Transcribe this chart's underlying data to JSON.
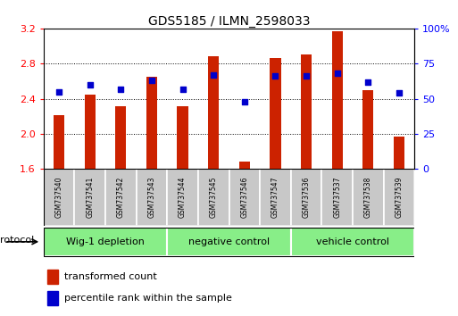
{
  "title": "GDS5185 / ILMN_2598033",
  "samples": [
    "GSM737540",
    "GSM737541",
    "GSM737542",
    "GSM737543",
    "GSM737544",
    "GSM737545",
    "GSM737546",
    "GSM737547",
    "GSM737536",
    "GSM737537",
    "GSM737538",
    "GSM737539"
  ],
  "transformed_count": [
    2.21,
    2.45,
    2.32,
    2.65,
    2.31,
    2.88,
    1.69,
    2.86,
    2.9,
    3.17,
    2.5,
    1.97
  ],
  "percentile_rank": [
    55,
    60,
    57,
    63,
    57,
    67,
    48,
    66,
    66,
    68,
    62,
    54
  ],
  "groups": [
    {
      "label": "Wig-1 depletion",
      "start": 0,
      "end": 3
    },
    {
      "label": "negative control",
      "start": 4,
      "end": 7
    },
    {
      "label": "vehicle control",
      "start": 8,
      "end": 11
    }
  ],
  "bar_color": "#cc2200",
  "dot_color": "#0000cc",
  "ylim_left": [
    1.6,
    3.2
  ],
  "ylim_right": [
    0,
    100
  ],
  "yticks_left": [
    1.6,
    2.0,
    2.4,
    2.8,
    3.2
  ],
  "ytick_labels_left": [
    "1.6",
    "2.0",
    "2.4",
    "2.8",
    "3.2"
  ],
  "yticks_right": [
    0,
    25,
    50,
    75,
    100
  ],
  "ytick_labels_right": [
    "0",
    "25",
    "50",
    "75",
    "100%"
  ],
  "group_bg_color": "#88ee88",
  "sample_bg_color": "#c8c8c8",
  "legend_red_label": "transformed count",
  "legend_blue_label": "percentile rank within the sample",
  "protocol_label": "protocol",
  "bar_width": 0.35
}
